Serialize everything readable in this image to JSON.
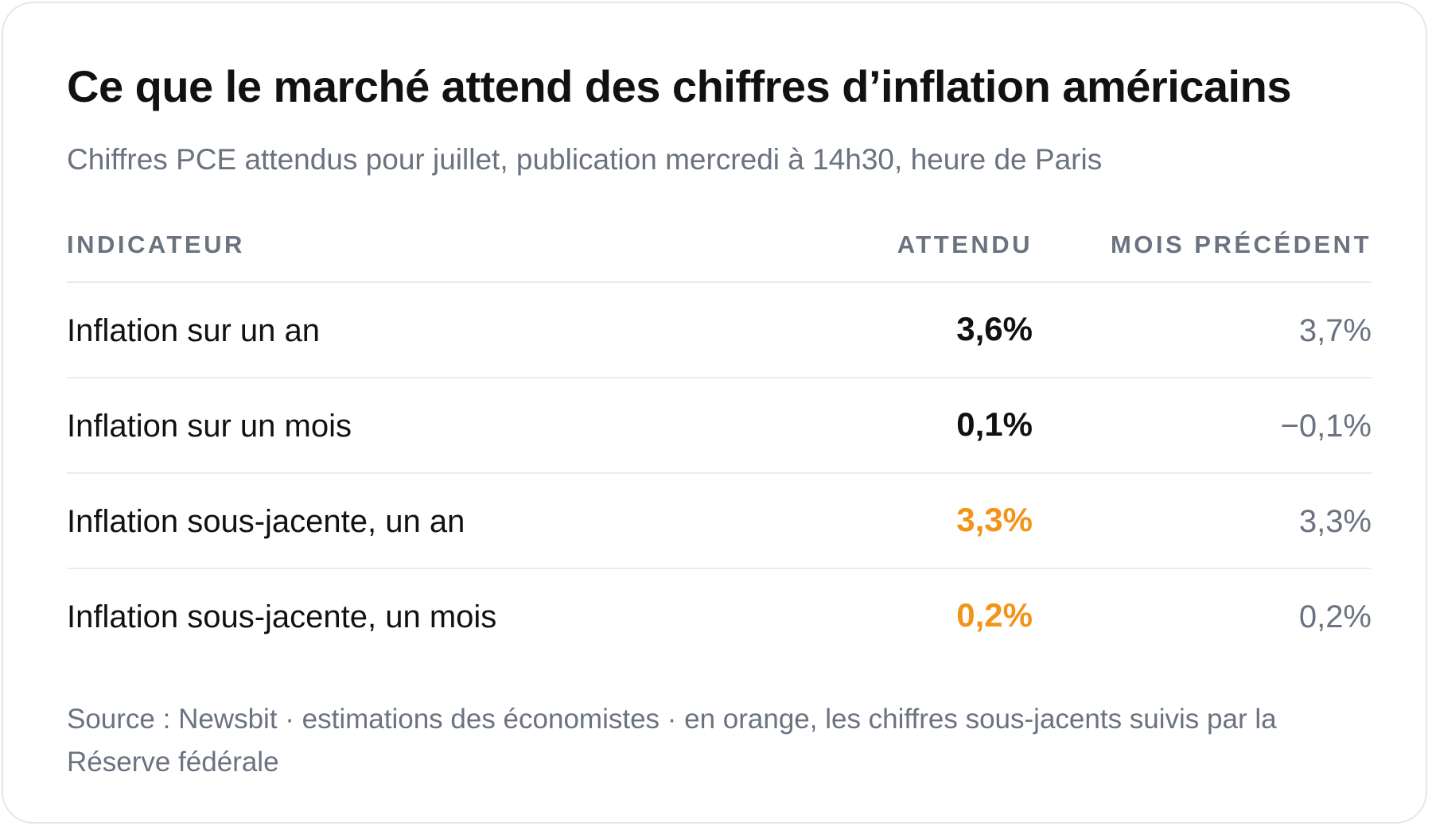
{
  "title": "Ce que le marché attend des chiffres d’inflation américains",
  "subtitle": "Chiffres PCE attendus pour juillet, publication mercredi à 14h30, heure de Paris",
  "source": "Source : Newsbit · estimations des économistes · en orange, les chiffres sous-jacents suivis par la Réserve fédérale",
  "colors": {
    "highlight": "#f39419",
    "muted": "#6b7280",
    "text": "#111111"
  },
  "chart_data": {
    "type": "table",
    "columns": [
      "INDICATEUR",
      "ATTENDU",
      "MOIS PRÉCÉDENT"
    ],
    "rows": [
      {
        "indicator": "Inflation sur un an",
        "expected": "3,6%",
        "previous": "3,7%",
        "highlight": false
      },
      {
        "indicator": "Inflation sur un mois",
        "expected": "0,1%",
        "previous": "−0,1%",
        "highlight": false
      },
      {
        "indicator": "Inflation sous-jacente, un an",
        "expected": "3,3%",
        "previous": "3,3%",
        "highlight": true
      },
      {
        "indicator": "Inflation sous-jacente, un mois",
        "expected": "0,2%",
        "previous": "0,2%",
        "highlight": true
      }
    ]
  }
}
